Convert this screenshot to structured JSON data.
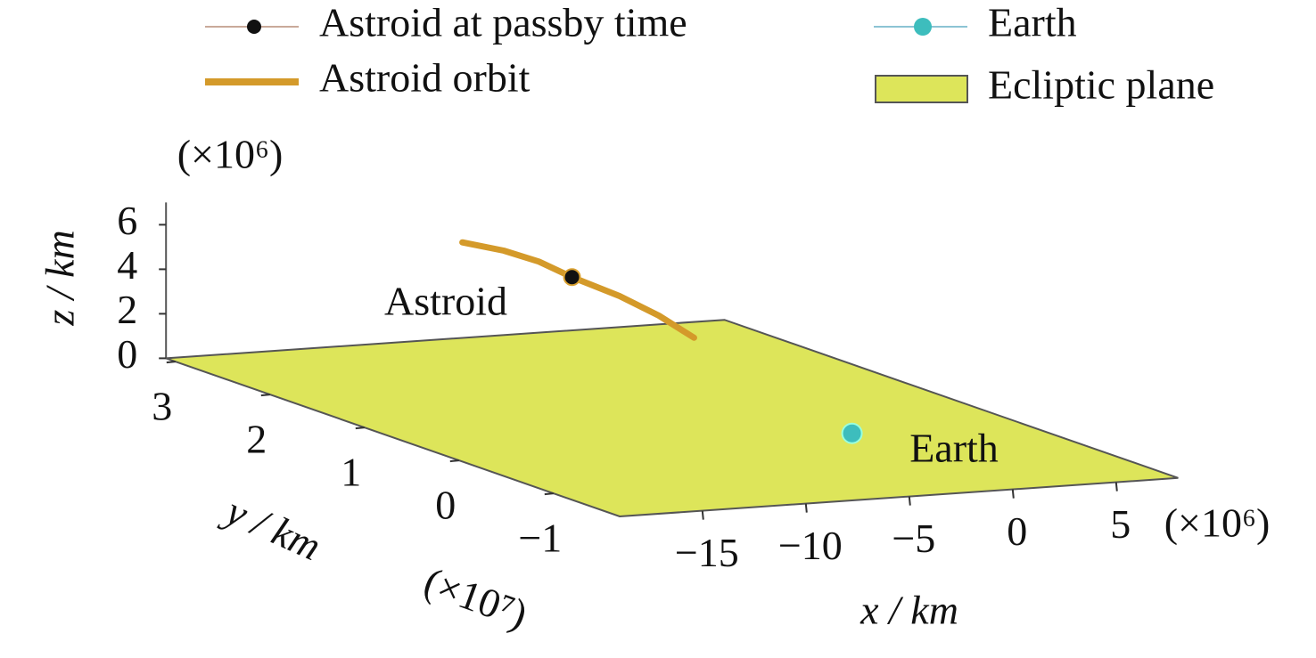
{
  "chart_data": {
    "type": "scatter3d",
    "legend": "top",
    "xlabel": "x / km",
    "ylabel": "y / km",
    "zlabel": "z / km",
    "x_multiplier": "(×10⁶)",
    "y_multiplier": "(×10⁷)",
    "z_multiplier": "(×10⁶)",
    "xlim": [
      -19,
      8
    ],
    "ylim": [
      -1.7,
      3.1
    ],
    "zlim": [
      0,
      7
    ],
    "xticks": [
      {
        "value": -15,
        "label": "−15"
      },
      {
        "value": -10,
        "label": "−10"
      },
      {
        "value": -5,
        "label": "−5"
      },
      0,
      5
    ],
    "yticks": [
      3,
      2,
      1,
      0,
      {
        "value": -1,
        "label": "−1"
      }
    ],
    "zticks": [
      0,
      2,
      4,
      6
    ],
    "series": [
      {
        "name": "Astroid at passby time",
        "color": "#111111",
        "line_color": "#c9a99a",
        "x": [
          -1.2
        ],
        "y": [
          2.7
        ],
        "z": [
          3.1
        ]
      },
      {
        "name": "Astroid orbit",
        "color": "#d49a2a",
        "x": [
          -6.5,
          -4.5,
          -2.8,
          -1.2,
          1.1,
          3.0,
          4.7
        ],
        "y": [
          2.7,
          2.7,
          2.7,
          2.7,
          2.7,
          2.7,
          2.7
        ],
        "z": [
          5.0,
          4.5,
          3.9,
          3.1,
          2.1,
          1.1,
          0.0
        ]
      },
      {
        "name": "Earth",
        "color": "#3dbdbd",
        "line_color": "#8cc4d4",
        "x": [
          0
        ],
        "y": [
          0
        ],
        "z": [
          0
        ]
      },
      {
        "name": "Ecliptic plane",
        "color": "#dde55a",
        "edge_color": "#555555",
        "z": [
          0
        ]
      }
    ],
    "annotations": [
      {
        "text": "Astroid"
      },
      {
        "text": "Earth"
      }
    ]
  }
}
